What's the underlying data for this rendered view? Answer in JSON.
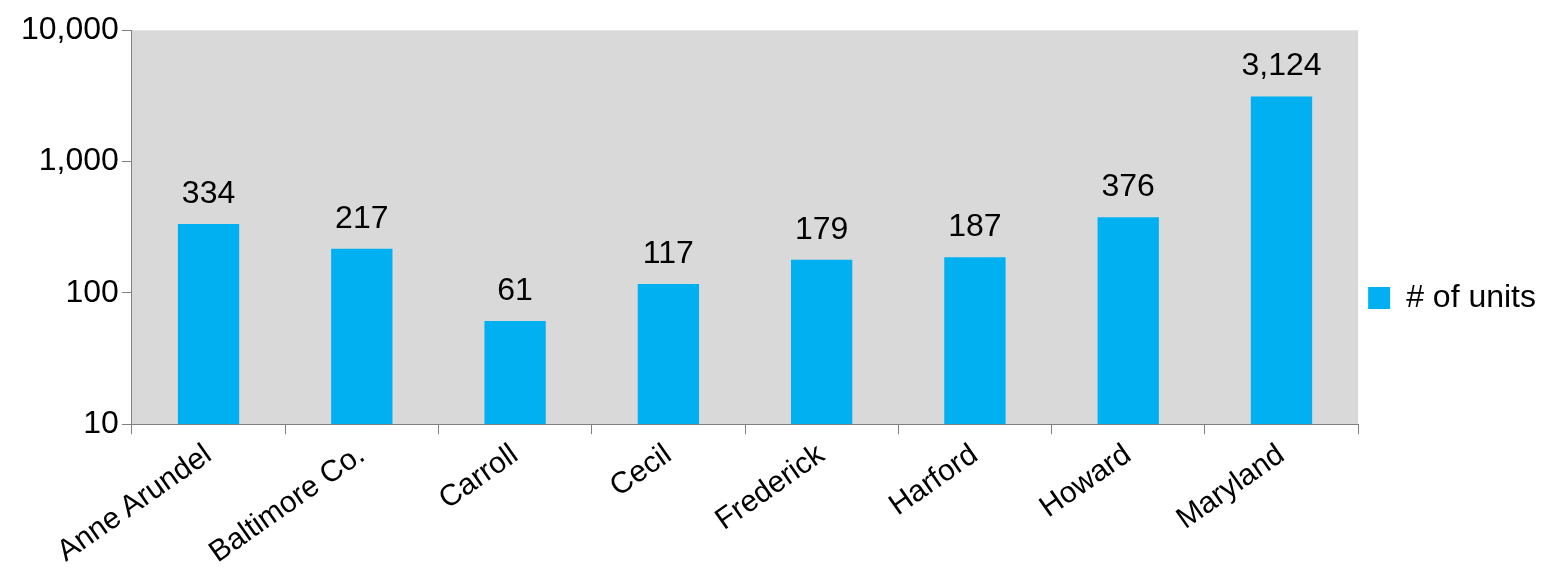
{
  "chart_data": {
    "type": "bar",
    "categories": [
      "Anne Arundel",
      "Baltimore Co.",
      "Carroll",
      "Cecil",
      "Frederick",
      "Harford",
      "Howard",
      "Maryland"
    ],
    "series": [
      {
        "name": "# of units",
        "color": "#00b0f0",
        "values": [
          334,
          217,
          61,
          117,
          179,
          187,
          376,
          3124
        ],
        "value_labels": [
          "334",
          "217",
          "61",
          "117",
          "179",
          "187",
          "376",
          "3,124"
        ]
      }
    ],
    "log": "y",
    "ylim": [
      10,
      10000
    ],
    "yticks": [
      10,
      100,
      {
        "value": 1000,
        "label": "1,000"
      },
      {
        "value": 10000,
        "label": "10,000"
      }
    ],
    "legend": "right"
  }
}
